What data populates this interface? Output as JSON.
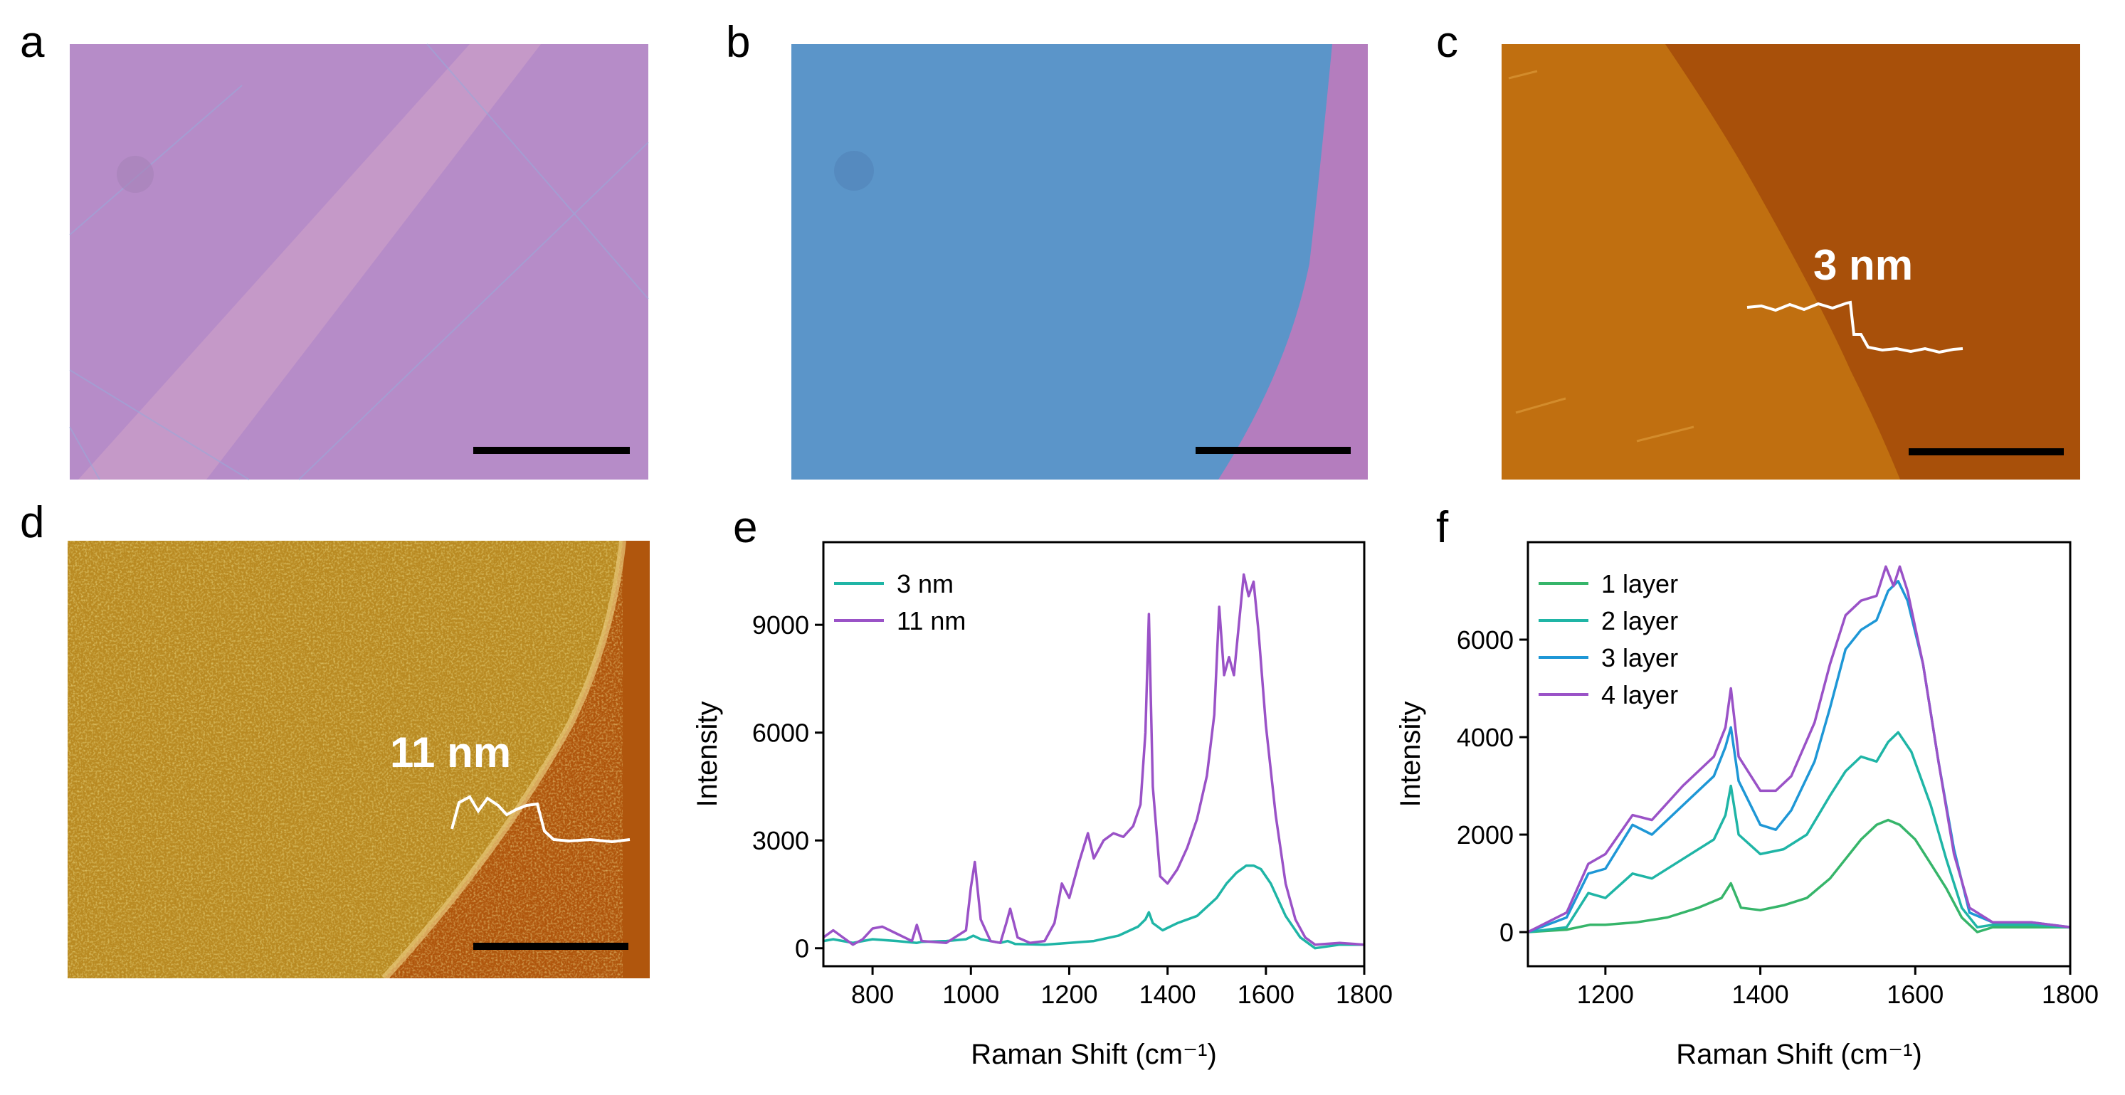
{
  "panels": {
    "a": {
      "label": "a"
    },
    "b": {
      "label": "b"
    },
    "c": {
      "label": "c",
      "annotation": "3 nm"
    },
    "d": {
      "label": "d",
      "annotation": "11 nm"
    },
    "e": {
      "label": "e"
    },
    "f": {
      "label": "f"
    }
  },
  "colors": {
    "panel_a_bg": "#B68CC8",
    "panel_a_band": "#C79AC8",
    "panel_b_blue": "#5B95C9",
    "panel_b_pink": "#B47DBE",
    "panel_c_left": "#C06F10",
    "panel_c_right": "#A8500A",
    "panel_d_film": "#B98A22",
    "panel_d_sub": "#B0560D",
    "series_teal": "#1FB5A6",
    "series_purple": "#9A52C7",
    "series_green": "#36B56A",
    "series_blue": "#1E97D6"
  },
  "chart_data": [
    {
      "panel": "e",
      "type": "line",
      "xlabel": "Raman Shift (cm⁻¹)",
      "ylabel": "Intensity",
      "xlim": [
        700,
        1800
      ],
      "ylim": [
        -500,
        11300
      ],
      "xticks": [
        800,
        1000,
        1200,
        1400,
        1600,
        1800
      ],
      "yticks": [
        0,
        3000,
        6000,
        9000
      ],
      "legend": "top-left",
      "series": [
        {
          "name": "3 nm",
          "color": "#1FB5A6",
          "x": [
            700,
            720,
            740,
            760,
            780,
            800,
            850,
            890,
            900,
            950,
            990,
            1005,
            1020,
            1060,
            1075,
            1090,
            1150,
            1200,
            1250,
            1300,
            1340,
            1355,
            1362,
            1370,
            1390,
            1420,
            1460,
            1500,
            1520,
            1540,
            1560,
            1575,
            1590,
            1610,
            1640,
            1670,
            1700,
            1750,
            1800
          ],
          "y": [
            200,
            250,
            200,
            150,
            200,
            250,
            200,
            150,
            180,
            200,
            250,
            350,
            250,
            150,
            200,
            120,
            100,
            150,
            200,
            350,
            600,
            800,
            1000,
            700,
            500,
            700,
            900,
            1400,
            1800,
            2100,
            2300,
            2300,
            2200,
            1800,
            900,
            300,
            0,
            100,
            100
          ]
        },
        {
          "name": "11 nm",
          "color": "#9A52C7",
          "x": [
            700,
            720,
            740,
            760,
            780,
            800,
            820,
            850,
            880,
            890,
            900,
            950,
            990,
            1000,
            1008,
            1020,
            1040,
            1060,
            1072,
            1080,
            1095,
            1120,
            1150,
            1170,
            1185,
            1200,
            1220,
            1238,
            1250,
            1270,
            1290,
            1310,
            1330,
            1345,
            1355,
            1362,
            1370,
            1385,
            1400,
            1420,
            1440,
            1460,
            1480,
            1495,
            1505,
            1515,
            1525,
            1535,
            1545,
            1555,
            1565,
            1575,
            1585,
            1600,
            1620,
            1640,
            1660,
            1680,
            1700,
            1750,
            1800
          ],
          "y": [
            300,
            500,
            300,
            100,
            250,
            550,
            600,
            400,
            200,
            650,
            200,
            150,
            500,
            1700,
            2400,
            800,
            200,
            150,
            700,
            1100,
            300,
            150,
            200,
            700,
            1800,
            1400,
            2400,
            3200,
            2500,
            3000,
            3200,
            3100,
            3400,
            4000,
            6000,
            9300,
            4500,
            2000,
            1800,
            2200,
            2800,
            3600,
            4800,
            6500,
            9500,
            7600,
            8100,
            7600,
            9000,
            10400,
            9800,
            10200,
            8800,
            6200,
            3700,
            1800,
            800,
            300,
            100,
            150,
            100
          ]
        }
      ]
    },
    {
      "panel": "f",
      "type": "line",
      "xlabel": "Raman Shift (cm⁻¹)",
      "ylabel": "Intensity",
      "xlim": [
        1100,
        1800
      ],
      "ylim": [
        -700,
        8000
      ],
      "xticks": [
        1200,
        1400,
        1600,
        1800
      ],
      "yticks": [
        0,
        2000,
        4000,
        6000
      ],
      "legend": "top-left",
      "series": [
        {
          "name": "1 layer",
          "color": "#36B56A",
          "x": [
            1100,
            1150,
            1180,
            1200,
            1240,
            1280,
            1320,
            1350,
            1362,
            1375,
            1400,
            1430,
            1460,
            1490,
            1510,
            1530,
            1550,
            1565,
            1580,
            1600,
            1620,
            1640,
            1660,
            1680,
            1700,
            1750,
            1800
          ],
          "y": [
            0,
            50,
            150,
            150,
            200,
            300,
            500,
            700,
            1000,
            500,
            450,
            550,
            700,
            1100,
            1500,
            1900,
            2200,
            2300,
            2200,
            1900,
            1400,
            900,
            300,
            0,
            100,
            100,
            100
          ]
        },
        {
          "name": "2 layer",
          "color": "#1FB5A6",
          "x": [
            1100,
            1150,
            1178,
            1200,
            1235,
            1260,
            1300,
            1340,
            1355,
            1362,
            1372,
            1400,
            1430,
            1460,
            1490,
            1510,
            1530,
            1550,
            1565,
            1578,
            1595,
            1620,
            1640,
            1660,
            1680,
            1700,
            1750,
            1800
          ],
          "y": [
            0,
            100,
            800,
            700,
            1200,
            1100,
            1500,
            1900,
            2400,
            3000,
            2000,
            1600,
            1700,
            2000,
            2800,
            3300,
            3600,
            3500,
            3900,
            4100,
            3700,
            2600,
            1500,
            500,
            100,
            150,
            150,
            100
          ]
        },
        {
          "name": "3 layer",
          "color": "#1E97D6",
          "x": [
            1100,
            1150,
            1178,
            1200,
            1235,
            1260,
            1300,
            1340,
            1355,
            1362,
            1372,
            1400,
            1420,
            1440,
            1470,
            1490,
            1510,
            1530,
            1550,
            1565,
            1578,
            1590,
            1610,
            1630,
            1650,
            1670,
            1700,
            1750,
            1800
          ],
          "y": [
            0,
            300,
            1200,
            1300,
            2200,
            2000,
            2600,
            3200,
            3800,
            4200,
            3100,
            2200,
            2100,
            2500,
            3500,
            4600,
            5800,
            6200,
            6400,
            7000,
            7200,
            6800,
            5500,
            3500,
            1700,
            400,
            200,
            200,
            100
          ]
        },
        {
          "name": "4 layer",
          "color": "#9A52C7",
          "x": [
            1100,
            1150,
            1178,
            1200,
            1235,
            1260,
            1300,
            1340,
            1355,
            1362,
            1372,
            1400,
            1420,
            1440,
            1470,
            1490,
            1510,
            1530,
            1550,
            1562,
            1572,
            1580,
            1590,
            1610,
            1630,
            1650,
            1670,
            1700,
            1750,
            1800
          ],
          "y": [
            0,
            400,
            1400,
            1600,
            2400,
            2300,
            3000,
            3600,
            4200,
            5000,
            3600,
            2900,
            2900,
            3200,
            4300,
            5500,
            6500,
            6800,
            6900,
            7500,
            7100,
            7500,
            7000,
            5500,
            3500,
            1600,
            500,
            200,
            200,
            100
          ]
        }
      ]
    }
  ]
}
